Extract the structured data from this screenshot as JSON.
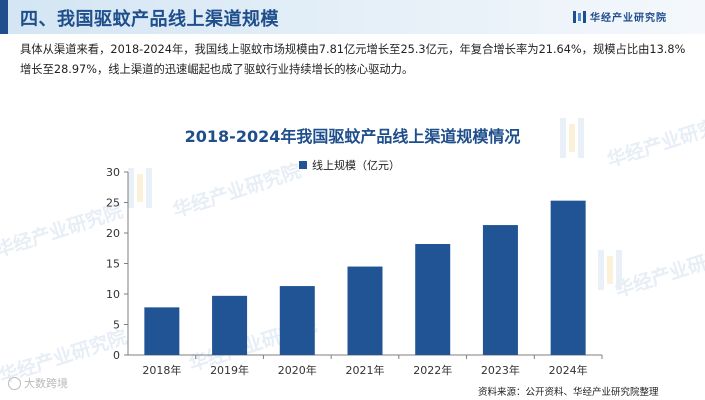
{
  "header": {
    "title": "四、我国驱蚊产品线上渠道规模",
    "brand": "华经产业研究院"
  },
  "intro": "具体从渠道来看，2018-2024年，我国线上驱蚊市场规模由7.81亿元增长至25.3亿元，年复合增长率为21.64%，规模占比由13.8%增长至28.97%，线上渠道的迅速崛起也成了驱蚊行业持续增长的核心驱动力。",
  "watermark": "华经产业研究院",
  "chart_data": {
    "type": "bar",
    "title": "2018-2024年我国驱蚊产品线上渠道规模情况",
    "categories": [
      "2018年",
      "2019年",
      "2020年",
      "2021年",
      "2022年",
      "2023年",
      "2024年"
    ],
    "series": [
      {
        "name": "线上规模（亿元）",
        "values": [
          7.81,
          9.7,
          11.3,
          14.5,
          18.2,
          21.3,
          25.3
        ]
      }
    ],
    "ylim": [
      0,
      30
    ],
    "yticks": [
      0,
      5,
      10,
      15,
      20,
      25,
      30
    ],
    "grid": false,
    "legend_position": "top-center",
    "bar_color": "#215495"
  },
  "source": "资料来源：公开资料、华经产业研究院整理",
  "corner_logo": "大数跨境"
}
